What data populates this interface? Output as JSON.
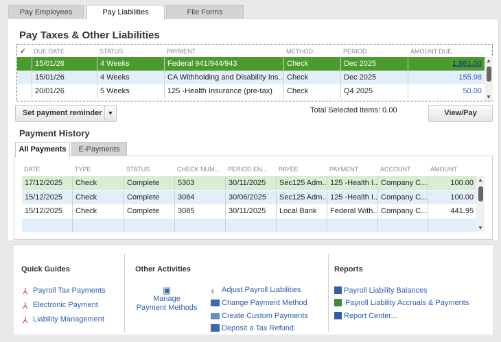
{
  "tabs": [
    "Pay Employees",
    "Pay Liabilities",
    "File Forms"
  ],
  "active_tab": "Pay Liabilities",
  "liabilities": {
    "title": "Pay Taxes & Other Liabilities",
    "check_header": "✓",
    "columns": [
      "DUE DATE",
      "STATUS",
      "PAYMENT",
      "METHOD",
      "PERIOD",
      "AMOUNT DUE"
    ],
    "rows": [
      {
        "due": "15/01/26",
        "status": "4 Weeks",
        "payment": "Federal 941/944/943",
        "method": "Check",
        "period": "Dec 2025",
        "amount": "1,861.00"
      },
      {
        "due": "15/01/26",
        "status": "4 Weeks",
        "payment": "CA Withholding and Disability Ins...",
        "method": "Check",
        "period": "Dec 2025",
        "amount": "155.98"
      },
      {
        "due": "20/01/26",
        "status": "5 Weeks",
        "payment": "125 -Health Insurance (pre-tax)",
        "method": "Check",
        "period": "Q4 2025",
        "amount": "50.00"
      }
    ],
    "reminder_button": "Set payment reminder",
    "total_label": "Total Selected Items: 0.00",
    "view_pay_button": "View/Pay",
    "colors": {
      "selected_row": "#4a9a2c",
      "alt_row": "#e3eefb",
      "link": "#2e5fae"
    }
  },
  "history": {
    "title": "Payment History",
    "tabs": [
      "All Payments",
      "E-Payments"
    ],
    "columns": [
      "DATE",
      "TYPE",
      "STATUS",
      "CHECK NUM...",
      "PERIOD EN...",
      "PAYEE",
      "PAYMENT",
      "ACCOUNT",
      "AMOUNT"
    ],
    "rows": [
      [
        "17/12/2025",
        "Check",
        "Complete",
        "5303",
        "30/11/2025",
        "Sec125 Adm...",
        "125 -Health I...",
        "Company C...",
        "100.00"
      ],
      [
        "15/12/2025",
        "Check",
        "Complete",
        "3084",
        "30/06/2025",
        "Sec125 Adm...",
        "125 -Health I...",
        "Company C...",
        "100.00"
      ],
      [
        "15/12/2025",
        "Check",
        "Complete",
        "3085",
        "30/11/2025",
        "Local Bank",
        "Federal With...",
        "Company C...",
        "441.95"
      ],
      [
        "",
        "",
        "",
        "",
        "",
        "",
        "",
        "",
        ""
      ]
    ]
  },
  "quick_guides": {
    "title": "Quick Guides",
    "links": [
      "Payroll Tax Payments",
      "Electronic Payment",
      "Liability Management"
    ]
  },
  "other_activities": {
    "title": "Other Activities",
    "manage_line1": "Manage",
    "manage_line2": "Payment Methods",
    "links": [
      "Adjust Payroll Liabilities",
      "Change Payment Method",
      "Create Custom Payments",
      "Deposit a Tax Refund"
    ]
  },
  "reports": {
    "title": "Reports",
    "links": [
      "Payroll Liability Balances",
      "Payroll Liability Accruals & Payments",
      "Report Center..."
    ]
  }
}
